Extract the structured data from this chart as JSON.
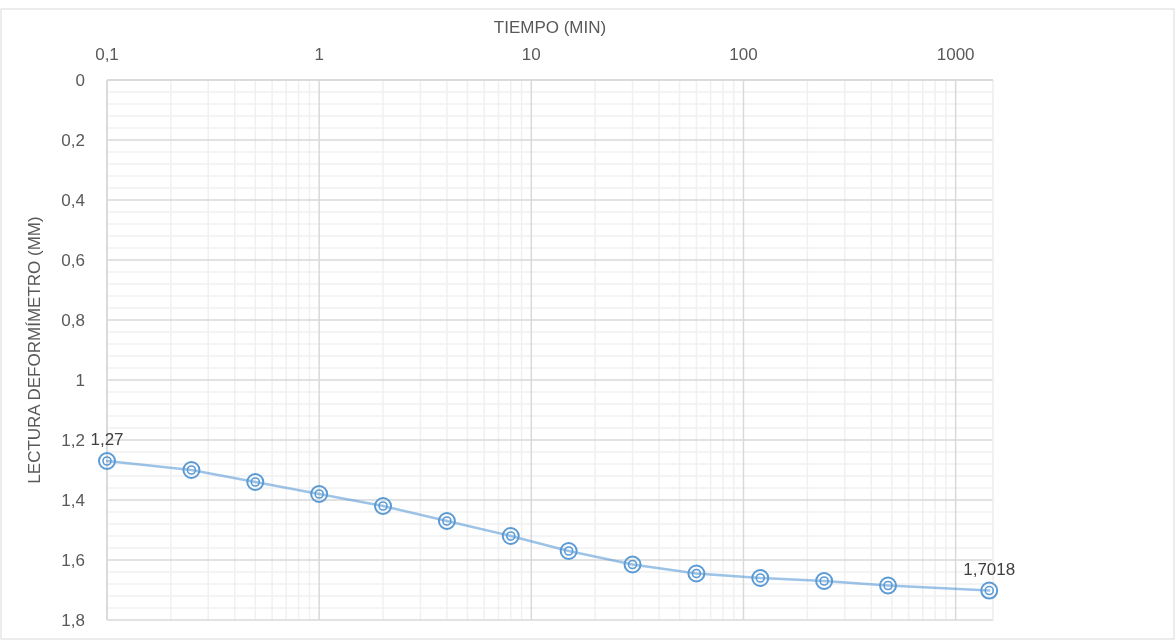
{
  "chart_data": {
    "type": "line",
    "xlabel": "TIEMPO (MIN)",
    "ylabel": "LECTURA DEFORMÍMETRO (MM)",
    "x": [
      0.1,
      0.25,
      0.5,
      1,
      2,
      4,
      8,
      15,
      30,
      60,
      120,
      240,
      480,
      1440
    ],
    "series": [
      {
        "color": "#5b9bd5",
        "values": [
          1.27,
          1.3,
          1.34,
          1.38,
          1.42,
          1.47,
          1.52,
          1.57,
          1.615,
          1.645,
          1.66,
          1.67,
          1.685,
          1.7018
        ],
        "value_labels": [
          "1,27",
          null,
          null,
          null,
          null,
          null,
          null,
          null,
          null,
          null,
          null,
          null,
          null,
          "1,7018"
        ]
      }
    ],
    "log": "x",
    "xlim": [
      0.1,
      1500
    ],
    "xticks": [
      {
        "value": 0.1,
        "label": "0,1"
      },
      1,
      10,
      100,
      1000
    ],
    "ylim": [
      1.8,
      0
    ],
    "yticks": [
      0,
      {
        "value": 0.2,
        "label": "0,2"
      },
      {
        "value": 0.4,
        "label": "0,4"
      },
      {
        "value": 0.6,
        "label": "0,6"
      },
      {
        "value": 0.8,
        "label": "0,8"
      },
      1,
      {
        "value": 1.2,
        "label": "1,2"
      },
      {
        "value": 1.4,
        "label": "1,4"
      },
      {
        "value": 1.6,
        "label": "1,6"
      },
      {
        "value": 1.8,
        "label": "1,8"
      }
    ],
    "grid": true,
    "marker": "circle",
    "line_style": "solid"
  }
}
